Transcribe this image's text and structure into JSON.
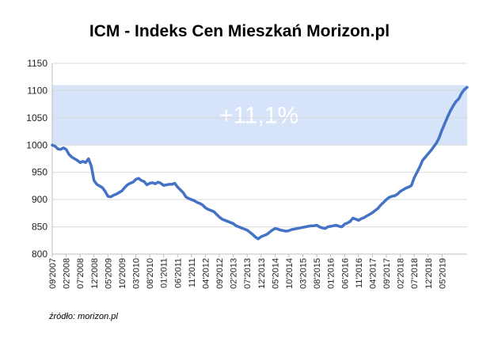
{
  "chart_data": {
    "type": "line",
    "title": "ICM - Indeks Cen Mieszkań Morizon.pl",
    "source": "źródło: morizon.pl",
    "xlabel": "",
    "ylabel": "",
    "ylim": [
      800,
      1150
    ],
    "y_ticks": [
      800,
      850,
      900,
      950,
      1000,
      1050,
      1100,
      1150
    ],
    "grid": true,
    "x_tick_labels": [
      "09'2007",
      "02'2008",
      "07'2008",
      "12'2008",
      "05'2009",
      "10'2009",
      "03'2010",
      "08'2010",
      "01'2011",
      "06'2011",
      "11'2011",
      "04'2012",
      "09'2012",
      "02'2013",
      "07'2013",
      "12'2013",
      "05'2014",
      "10'2014",
      "03'2015",
      "08'2015",
      "01'2016",
      "06'2016",
      "11'2016",
      "04'2017",
      "09'2017",
      "02'2018",
      "07'2018",
      "12'2018",
      "05'2019"
    ],
    "band": {
      "from": 1000,
      "to": 1110,
      "label": "+11,1%",
      "color": "#d6e3f8"
    },
    "series": [
      {
        "color": "#4472c4",
        "x_start": "09'2007",
        "values": [
          1000,
          998,
          993,
          992,
          995,
          992,
          983,
          978,
          975,
          972,
          968,
          970,
          968,
          975,
          962,
          935,
          928,
          925,
          922,
          915,
          906,
          905,
          908,
          910,
          913,
          916,
          922,
          927,
          930,
          932,
          937,
          939,
          935,
          933,
          927,
          930,
          931,
          929,
          932,
          930,
          926,
          927,
          928,
          928,
          930,
          923,
          918,
          913,
          905,
          902,
          900,
          898,
          895,
          893,
          890,
          885,
          882,
          880,
          878,
          873,
          868,
          864,
          862,
          860,
          858,
          856,
          852,
          850,
          848,
          846,
          844,
          840,
          836,
          831,
          828,
          832,
          834,
          836,
          840,
          844,
          847,
          846,
          844,
          843,
          842,
          843,
          845,
          846,
          847,
          848,
          849,
          850,
          851,
          852,
          852,
          853,
          850,
          848,
          847,
          850,
          851,
          852,
          853,
          851,
          850,
          855,
          857,
          860,
          866,
          864,
          862,
          865,
          867,
          870,
          873,
          876,
          880,
          884,
          890,
          895,
          900,
          904,
          906,
          907,
          910,
          915,
          918,
          921,
          923,
          926,
          940,
          950,
          960,
          972,
          978,
          984,
          990,
          997,
          1004,
          1014,
          1028,
          1040,
          1052,
          1063,
          1072,
          1080,
          1085,
          1095,
          1102,
          1106
        ]
      }
    ]
  }
}
